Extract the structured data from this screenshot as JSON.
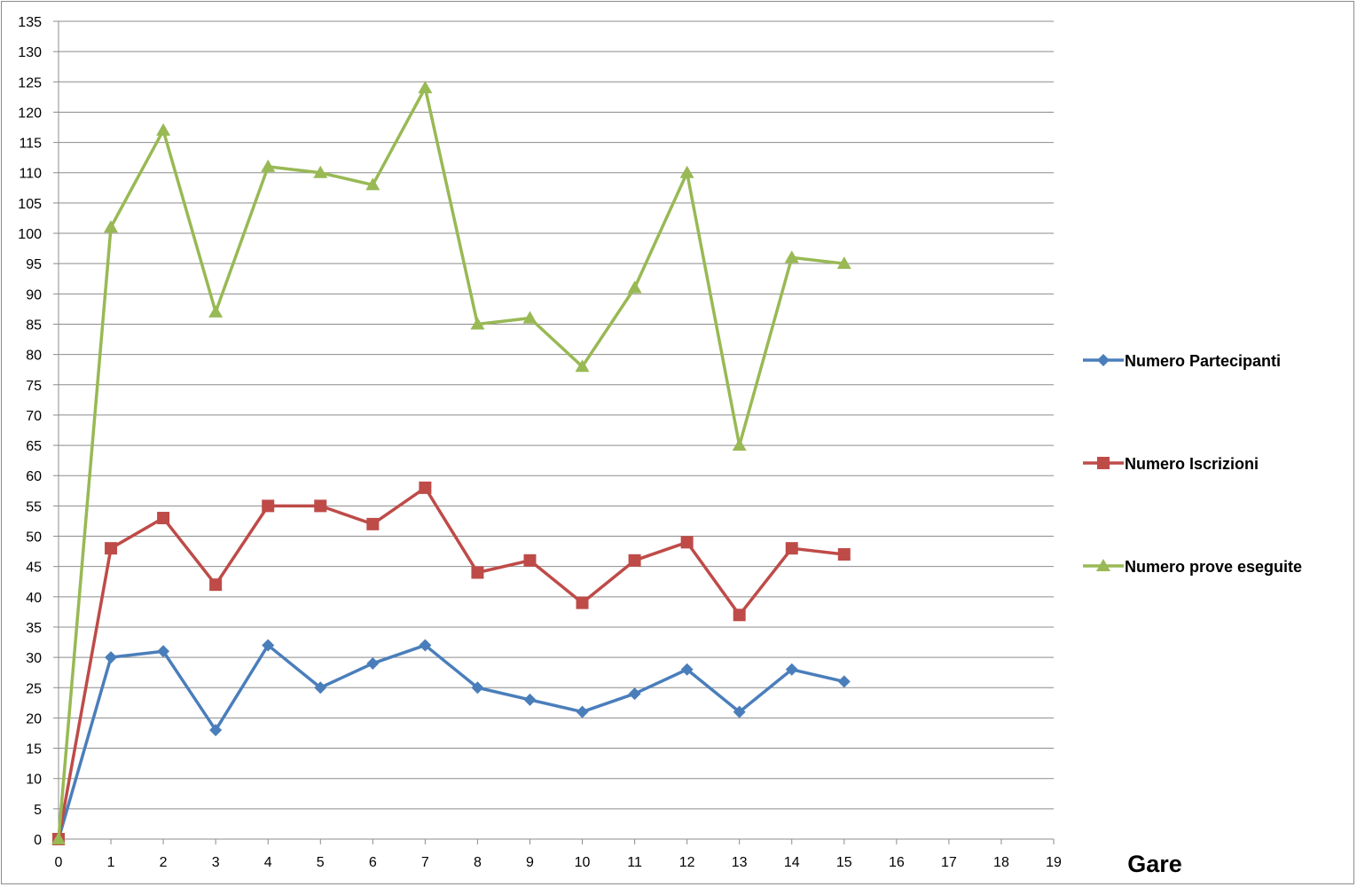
{
  "chart_data": {
    "type": "line",
    "title": "",
    "xlabel": "Gare",
    "ylabel": "",
    "xlim": [
      0,
      19
    ],
    "ylim": [
      0,
      135
    ],
    "x_ticks": [
      0,
      1,
      2,
      3,
      4,
      5,
      6,
      7,
      8,
      9,
      10,
      11,
      12,
      13,
      14,
      15,
      16,
      17,
      18,
      19
    ],
    "y_ticks": [
      0,
      5,
      10,
      15,
      20,
      25,
      30,
      35,
      40,
      45,
      50,
      55,
      60,
      65,
      70,
      75,
      80,
      85,
      90,
      95,
      100,
      105,
      110,
      115,
      120,
      125,
      130,
      135
    ],
    "grid": "horizontal",
    "legend_position": "right",
    "x": [
      0,
      1,
      2,
      3,
      4,
      5,
      6,
      7,
      8,
      9,
      10,
      11,
      12,
      13,
      14,
      15
    ],
    "series": [
      {
        "name": "Numero Partecipanti",
        "color": "#4a7ebb",
        "marker": "diamond",
        "values": [
          0,
          30,
          31,
          18,
          32,
          25,
          29,
          32,
          25,
          23,
          21,
          24,
          28,
          21,
          28,
          26
        ]
      },
      {
        "name": "Numero Iscrizioni",
        "color": "#be4b48",
        "marker": "square",
        "values": [
          0,
          48,
          53,
          42,
          55,
          55,
          52,
          58,
          44,
          46,
          39,
          46,
          49,
          37,
          48,
          47
        ]
      },
      {
        "name": "Numero prove eseguite",
        "color": "#98b954",
        "marker": "triangle",
        "values": [
          0,
          101,
          117,
          87,
          111,
          110,
          108,
          124,
          85,
          86,
          78,
          91,
          110,
          65,
          96,
          95
        ]
      }
    ]
  }
}
